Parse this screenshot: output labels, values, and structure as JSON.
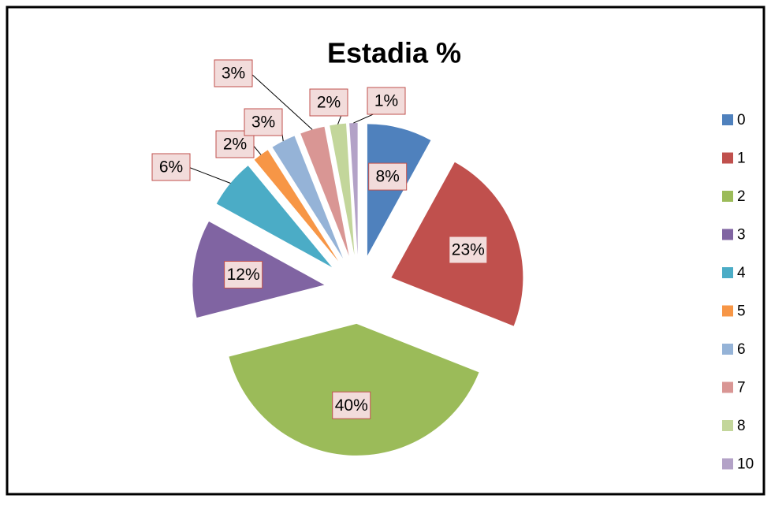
{
  "chart_data": {
    "type": "pie",
    "title": "Estadia %",
    "categories": [
      "0",
      "1",
      "2",
      "3",
      "4",
      "5",
      "6",
      "7",
      "8",
      "10"
    ],
    "values": [
      8,
      23,
      40,
      12,
      6,
      2,
      3,
      3,
      2,
      1
    ],
    "value_labels": [
      "8%",
      "23%",
      "40%",
      "12%",
      "6%",
      "2%",
      "3%",
      "3%",
      "2%",
      "1%"
    ],
    "colors": [
      "#4f81bd",
      "#c0504d",
      "#9bbb59",
      "#8064a2",
      "#4bacc6",
      "#f79646",
      "#95b3d7",
      "#d99694",
      "#c3d69b",
      "#b3a2c7"
    ],
    "legend": "right"
  }
}
